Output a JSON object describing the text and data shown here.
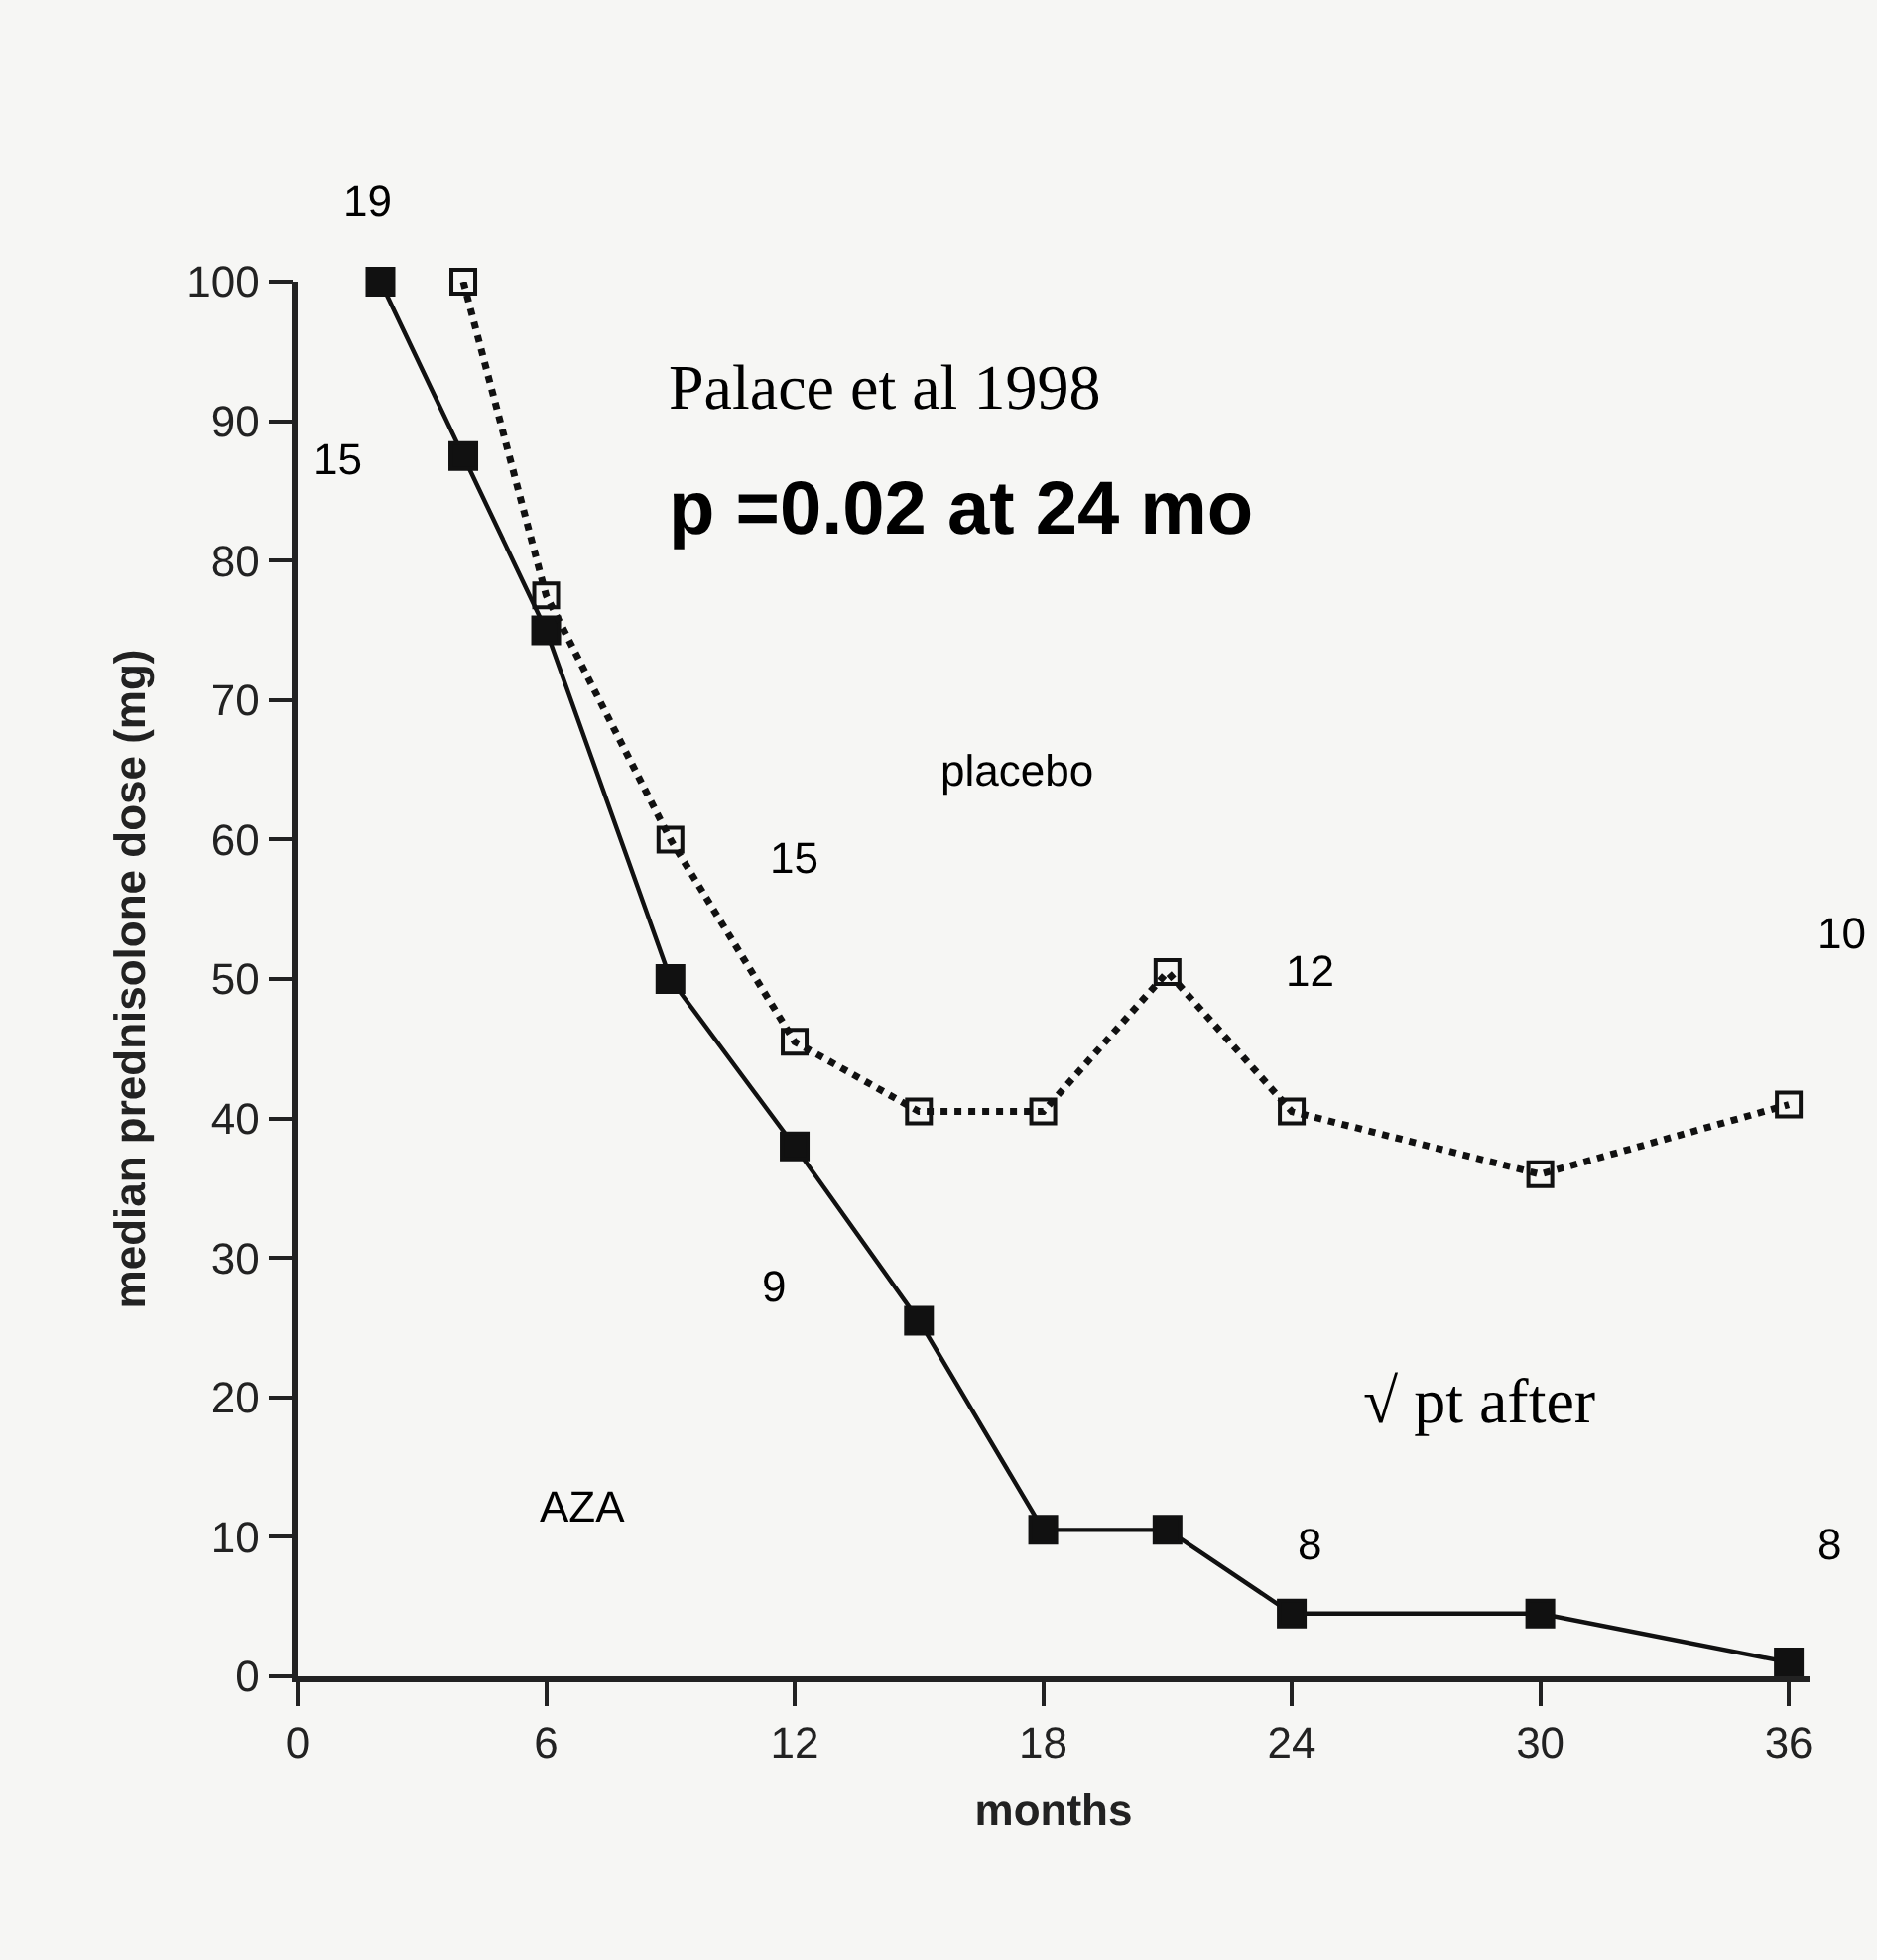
{
  "chart_data": {
    "type": "line",
    "xlabel": "months",
    "ylabel": "median prednisolone dose (mg)",
    "xlim": [
      0,
      36.5
    ],
    "xticks": [
      0,
      6,
      12,
      18,
      24,
      30,
      36
    ],
    "ylim": [
      0,
      100
    ],
    "yticks": [
      0,
      10,
      20,
      30,
      40,
      50,
      60,
      70,
      80,
      90,
      100
    ],
    "grid": false,
    "marker": "square",
    "series": [
      {
        "color": "#111111",
        "line_style": "solid",
        "x": [
          2,
          4,
          6,
          9,
          12,
          15,
          18,
          21,
          24,
          30,
          36
        ],
        "values": [
          100,
          87.5,
          75,
          50,
          38,
          25.5,
          10.5,
          10.5,
          4.5,
          4.5,
          1
        ]
      },
      {
        "color": "#111111",
        "line_style": "dotted",
        "x": [
          4,
          6,
          9,
          12,
          15,
          18,
          21,
          24,
          30,
          36
        ],
        "values": [
          100,
          77.5,
          60,
          45.5,
          40.5,
          40.5,
          50.5,
          40.5,
          36,
          41
        ]
      }
    ],
    "annotations": [
      "Palace et al 1998",
      "p =0.02 at 24 mo",
      "19",
      "15",
      "15",
      "9",
      "12",
      "10",
      "8",
      "8",
      "placebo",
      "AZA",
      "√ pt after"
    ]
  }
}
